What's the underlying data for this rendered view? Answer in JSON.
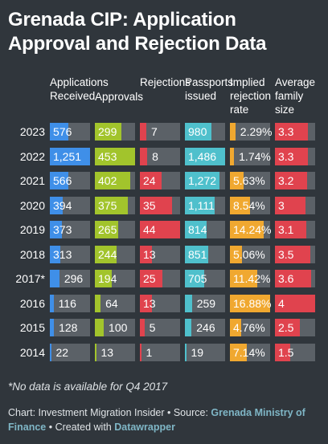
{
  "title": "Grenada CIP: Application Approval and Rejection Data",
  "note": "*No data is available for Q4 2017",
  "footer": {
    "chart_prefix": "Chart: Investment Migration Insider • Source: ",
    "source_link": "Grenada Ministry of Finance",
    "created_prefix": " • Created with ",
    "created_link": "Datawrapper"
  },
  "chart_data": {
    "type": "table",
    "columns": [
      {
        "label": "Applications Received",
        "color": "#3f8fe8",
        "max": 1251
      },
      {
        "label": "Approvals",
        "color": "#a2c42c",
        "max": 453
      },
      {
        "label": "Rejections",
        "color": "#e0434e",
        "max": 44
      },
      {
        "label": "Passports issued",
        "color": "#4fc0cc",
        "max": 1486
      },
      {
        "label": "Implied rejection rate",
        "color": "#f0a830",
        "max": 16.88
      },
      {
        "label": "Average family size",
        "color": "#e0434e",
        "max": 4
      }
    ],
    "rows": [
      {
        "year": "2023",
        "values": [
          576,
          299,
          7,
          980,
          2.29,
          3.3
        ],
        "labels": [
          "576",
          "299",
          "7",
          "980",
          "2.29%",
          "3.3"
        ]
      },
      {
        "year": "2022",
        "values": [
          1251,
          453,
          8,
          1486,
          1.74,
          3.3
        ],
        "labels": [
          "1,251",
          "453",
          "8",
          "1,486",
          "1.74%",
          "3.3"
        ]
      },
      {
        "year": "2021",
        "values": [
          566,
          402,
          24,
          1272,
          5.63,
          3.2
        ],
        "labels": [
          "566",
          "402",
          "24",
          "1,272",
          "5.63%",
          "3.2"
        ]
      },
      {
        "year": "2020",
        "values": [
          394,
          375,
          35,
          1111,
          8.54,
          3
        ],
        "labels": [
          "394",
          "375",
          "35",
          "1,111",
          "8.54%",
          "3"
        ]
      },
      {
        "year": "2019",
        "values": [
          373,
          265,
          44,
          814,
          14.24,
          3.1
        ],
        "labels": [
          "373",
          "265",
          "44",
          "814",
          "14.24%",
          "3.1"
        ]
      },
      {
        "year": "2018",
        "values": [
          313,
          244,
          13,
          851,
          5.06,
          3.5
        ],
        "labels": [
          "313",
          "244",
          "13",
          "851",
          "5.06%",
          "3.5"
        ]
      },
      {
        "year": "2017*",
        "values": [
          296,
          194,
          25,
          705,
          11.42,
          3.6
        ],
        "labels": [
          "296",
          "194",
          "25",
          "705",
          "11.42%",
          "3.6"
        ]
      },
      {
        "year": "2016",
        "values": [
          116,
          64,
          13,
          259,
          16.88,
          4
        ],
        "labels": [
          "116",
          "64",
          "13",
          "259",
          "16.88%",
          "4"
        ]
      },
      {
        "year": "2015",
        "values": [
          128,
          100,
          5,
          246,
          4.76,
          2.5
        ],
        "labels": [
          "128",
          "100",
          "5",
          "246",
          "4.76%",
          "2.5"
        ]
      },
      {
        "year": "2014",
        "values": [
          22,
          13,
          1,
          19,
          7.14,
          1.5
        ],
        "labels": [
          "22",
          "13",
          "1",
          "19",
          "7.14%",
          "1.5"
        ]
      }
    ]
  }
}
